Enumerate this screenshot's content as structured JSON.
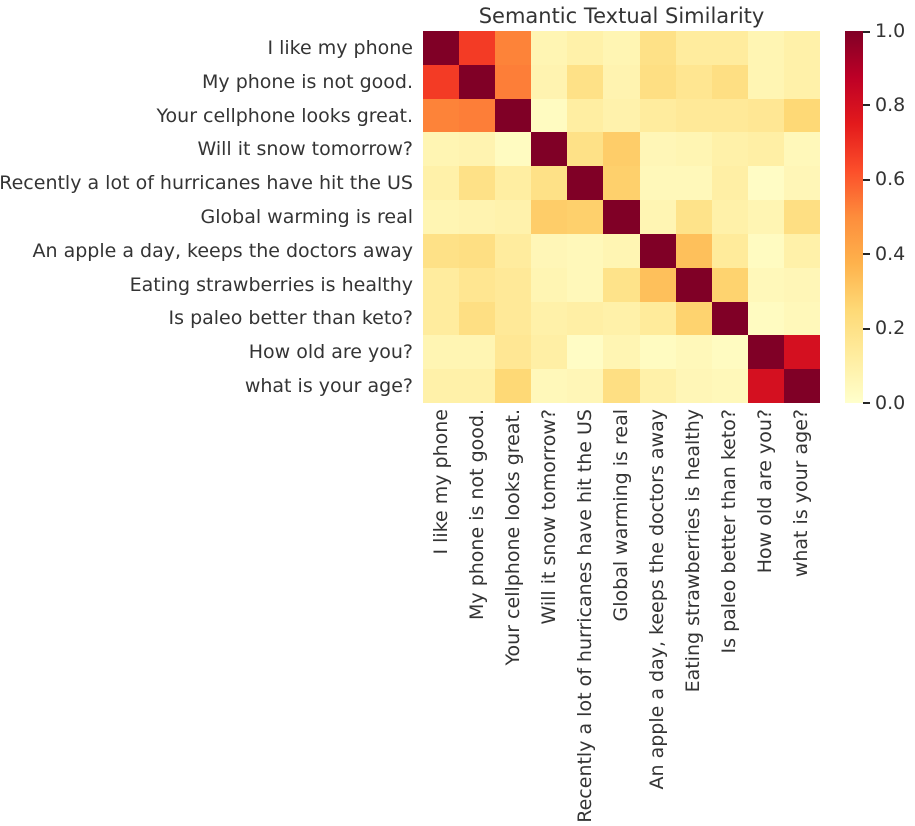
{
  "chart_data": {
    "type": "heatmap",
    "title": "Semantic Textual Similarity",
    "labels": [
      "I like my phone",
      "My phone is not good.",
      "Your cellphone looks great.",
      "Will it snow tomorrow?",
      "Recently a lot of hurricanes have hit the US",
      "Global warming is real",
      "An apple a day, keeps the doctors away",
      "Eating strawberries is healthy",
      "Is paleo better than keto?",
      "How old are you?",
      "what is your age?"
    ],
    "matrix": [
      [
        1.0,
        0.67,
        0.52,
        0.07,
        0.1,
        0.07,
        0.2,
        0.13,
        0.13,
        0.07,
        0.1
      ],
      [
        0.67,
        1.0,
        0.53,
        0.08,
        0.2,
        0.08,
        0.21,
        0.17,
        0.21,
        0.07,
        0.1
      ],
      [
        0.52,
        0.53,
        1.0,
        0.03,
        0.12,
        0.09,
        0.13,
        0.15,
        0.15,
        0.16,
        0.25
      ],
      [
        0.07,
        0.08,
        0.03,
        1.0,
        0.2,
        0.29,
        0.06,
        0.07,
        0.1,
        0.11,
        0.05
      ],
      [
        0.1,
        0.2,
        0.12,
        0.2,
        1.0,
        0.28,
        0.05,
        0.05,
        0.11,
        0.02,
        0.06
      ],
      [
        0.07,
        0.08,
        0.09,
        0.29,
        0.28,
        1.0,
        0.07,
        0.19,
        0.1,
        0.07,
        0.21
      ],
      [
        0.2,
        0.21,
        0.13,
        0.06,
        0.05,
        0.07,
        1.0,
        0.33,
        0.14,
        0.03,
        0.1
      ],
      [
        0.13,
        0.17,
        0.15,
        0.07,
        0.05,
        0.19,
        0.33,
        1.0,
        0.27,
        0.05,
        0.06
      ],
      [
        0.13,
        0.21,
        0.15,
        0.1,
        0.11,
        0.1,
        0.14,
        0.27,
        1.0,
        0.03,
        0.05
      ],
      [
        0.07,
        0.07,
        0.16,
        0.11,
        0.02,
        0.07,
        0.03,
        0.05,
        0.03,
        1.0,
        0.8
      ],
      [
        0.1,
        0.1,
        0.25,
        0.05,
        0.06,
        0.21,
        0.1,
        0.06,
        0.05,
        0.8,
        1.0
      ]
    ],
    "vmin": 0.0,
    "vmax": 1.0,
    "colormap": "YlOrRd",
    "colormap_stops": [
      [
        "#ffffcc",
        0.0
      ],
      [
        "#ffeda0",
        0.125
      ],
      [
        "#fed976",
        0.25
      ],
      [
        "#feb24c",
        0.375
      ],
      [
        "#fd8d3c",
        0.5
      ],
      [
        "#fc4e2a",
        0.625
      ],
      [
        "#e31a1c",
        0.75
      ],
      [
        "#bd0026",
        0.875
      ],
      [
        "#800026",
        1.0
      ]
    ],
    "colorbar_tick_labels": [
      "1.0",
      "0.8",
      "0.6",
      "0.4",
      "0.2",
      "0.0"
    ],
    "colorbar_tick_values": [
      1.0,
      0.8,
      0.6,
      0.4,
      0.2,
      0.0
    ],
    "legend_position": "right-colorbar",
    "grid": false,
    "xlabel": "",
    "ylabel": ""
  },
  "colors": {
    "background": "#ffffff",
    "text": "#343434",
    "max_cell": "#800026",
    "min_cell": "#ffffcc"
  }
}
